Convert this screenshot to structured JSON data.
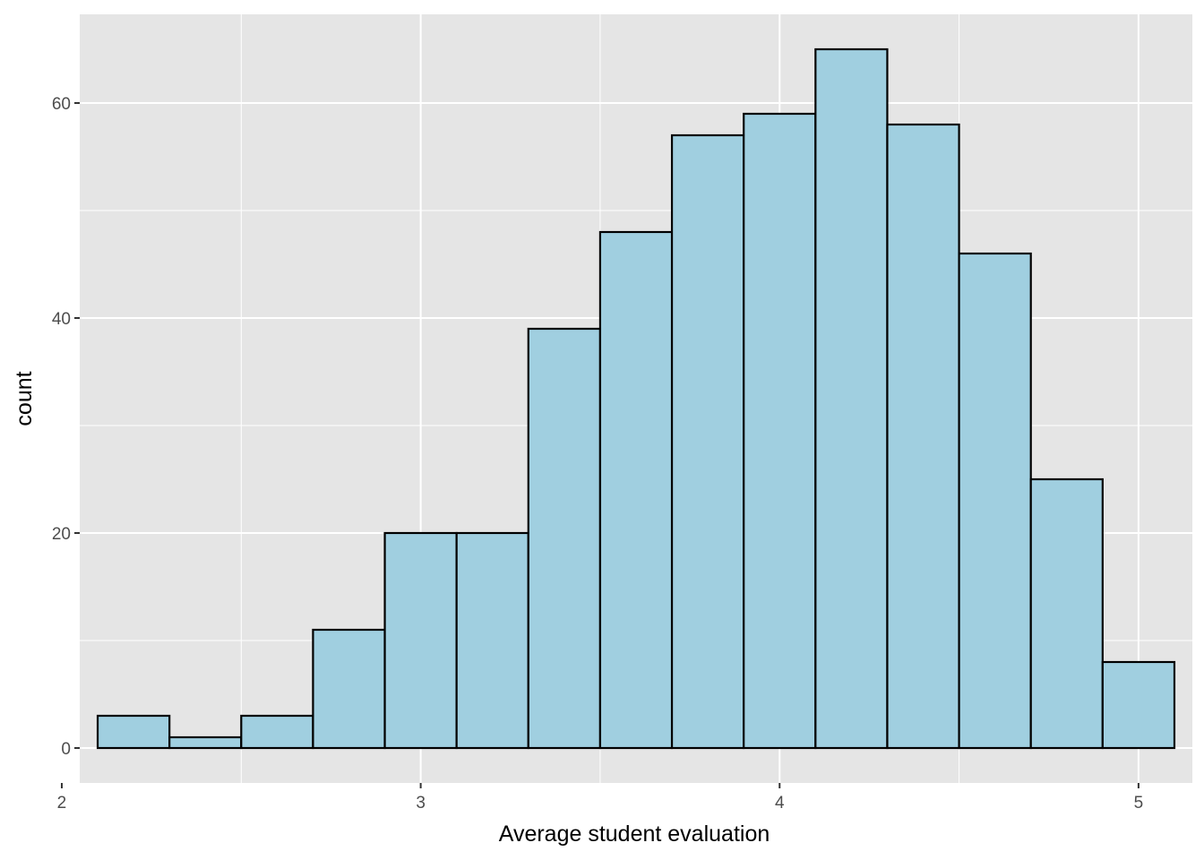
{
  "chart_data": {
    "type": "bar",
    "subtype": "histogram",
    "title": "",
    "xlabel": "Average student evaluation",
    "ylabel": "count",
    "xlim": [
      2.05,
      5.15
    ],
    "ylim": [
      -3.25,
      68.25
    ],
    "x_ticks": [
      2,
      3,
      4,
      5
    ],
    "y_ticks": [
      0,
      20,
      40,
      60
    ],
    "x_minor": [
      2.5,
      3.5,
      4.5
    ],
    "y_minor": [
      10,
      30,
      50
    ],
    "grid": true,
    "bin_width": 0.2,
    "bins": [
      {
        "start": 2.1,
        "end": 2.3,
        "count": 3
      },
      {
        "start": 2.3,
        "end": 2.5,
        "count": 1
      },
      {
        "start": 2.5,
        "end": 2.7,
        "count": 3
      },
      {
        "start": 2.7,
        "end": 2.9,
        "count": 11
      },
      {
        "start": 2.9,
        "end": 3.1,
        "count": 20
      },
      {
        "start": 3.1,
        "end": 3.3,
        "count": 20
      },
      {
        "start": 3.3,
        "end": 3.5,
        "count": 39
      },
      {
        "start": 3.5,
        "end": 3.7,
        "count": 48
      },
      {
        "start": 3.7,
        "end": 3.9,
        "count": 57
      },
      {
        "start": 3.9,
        "end": 4.1,
        "count": 59
      },
      {
        "start": 4.1,
        "end": 4.3,
        "count": 65
      },
      {
        "start": 4.3,
        "end": 4.5,
        "count": 58
      },
      {
        "start": 4.5,
        "end": 4.7,
        "count": 46
      },
      {
        "start": 4.7,
        "end": 4.9,
        "count": 25
      },
      {
        "start": 4.9,
        "end": 5.1,
        "count": 8
      }
    ],
    "colors": {
      "panel": "#e5e5e5",
      "grid": "#ffffff",
      "bar_fill": "#a0cfe0",
      "bar_stroke": "#000000"
    }
  }
}
